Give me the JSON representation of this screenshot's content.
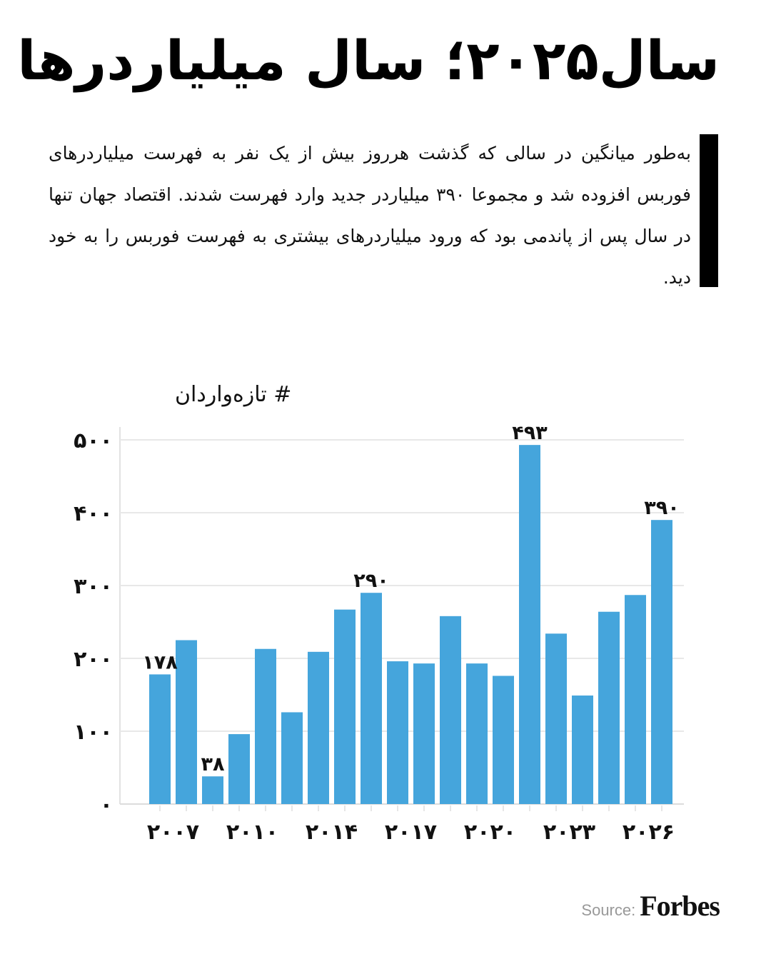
{
  "title": "سال۲۰۲۵؛ سال میلیاردرها",
  "lead": "به‌طور میانگین در سالی که گذشت هرروز بیش از یک نفر به فهرست میلیاردرهای فوربس افزوده شد و مجموعا ۳۹۰ میلیاردر جدید وارد فهرست شدند. اقتصاد جهان تنها در سال پس از پاندمی بود که ورود میلیاردرهای بیشتری به فهرست فوربس را به خود دید.",
  "source": {
    "label": "Source:",
    "logo": "Forbes"
  },
  "chart_data": {
    "type": "bar",
    "ylabel": "# تازه‌واردان",
    "ylim": [
      0,
      500
    ],
    "yticks": [
      "۰",
      "۱۰۰",
      "۲۰۰",
      "۳۰۰",
      "۴۰۰",
      "۵۰۰"
    ],
    "grid": true,
    "color": "#45a5dc",
    "x": [
      2007,
      2008,
      2009,
      2010,
      2011,
      2012,
      2013,
      2014,
      2015,
      2016,
      2017,
      2018,
      2019,
      2020,
      2021,
      2022,
      2023,
      2024,
      2025,
      2026
    ],
    "values": [
      178,
      225,
      38,
      96,
      213,
      126,
      209,
      267,
      290,
      196,
      193,
      258,
      193,
      176,
      493,
      234,
      149,
      264,
      287,
      390
    ],
    "xtick_labels": [
      "۲۰۰۷",
      "۲۰۱۰",
      "۲۰۱۴",
      "۲۰۱۷",
      "۲۰۲۰",
      "۲۰۲۳",
      "۲۰۲۶"
    ],
    "data_labels": [
      {
        "index": 0,
        "text": "۱۷۸"
      },
      {
        "index": 2,
        "text": "۳۸"
      },
      {
        "index": 8,
        "text": "۲۹۰"
      },
      {
        "index": 14,
        "text": "۴۹۳"
      },
      {
        "index": 19,
        "text": "۳۹۰"
      }
    ]
  }
}
